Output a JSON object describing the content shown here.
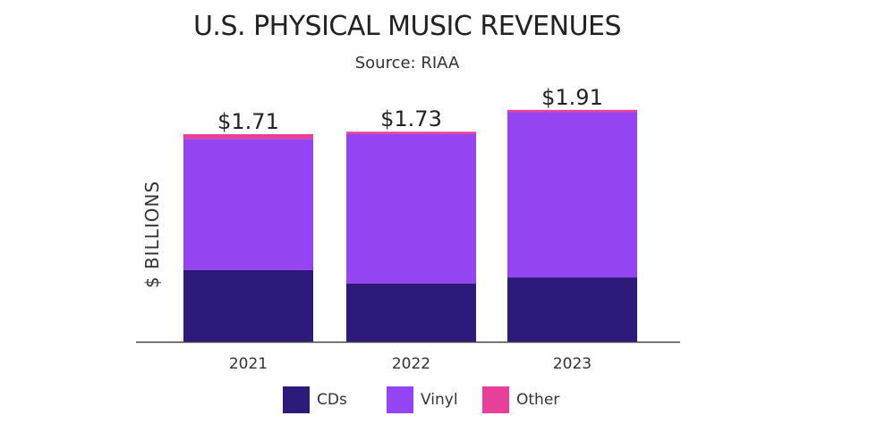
{
  "chart_data": {
    "type": "bar",
    "stacked": true,
    "title": "U.S. PHYSICAL MUSIC REVENUES",
    "subtitle": "Source: RIAA",
    "ylabel": "$ BILLIONS",
    "xlabel": "",
    "ylim": [
      0,
      1.95
    ],
    "grid": false,
    "legend_position": "bottom",
    "categories": [
      "2021",
      "2022",
      "2023"
    ],
    "totals_labels": [
      "$1.71",
      "$1.73",
      "$1.91"
    ],
    "series": [
      {
        "name": "CDs",
        "color": "#2e1a7a",
        "values": [
          0.59,
          0.48,
          0.53
        ]
      },
      {
        "name": "Vinyl",
        "color": "#9444f0",
        "values": [
          1.08,
          1.23,
          1.36
        ]
      },
      {
        "name": "Other",
        "color": "#e8409a",
        "values": [
          0.04,
          0.02,
          0.02
        ]
      }
    ]
  }
}
